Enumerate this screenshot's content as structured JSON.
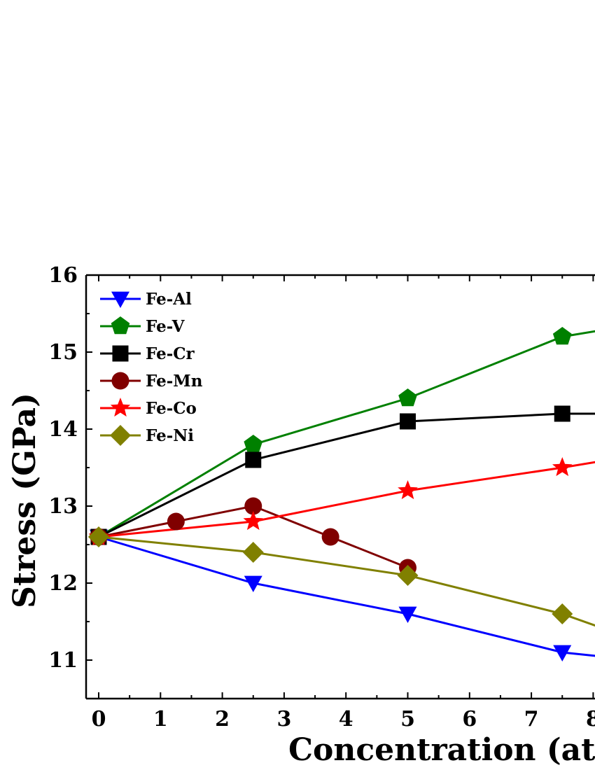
{
  "chart_data": {
    "type": "line",
    "xlabel": "Concentration (at.%)",
    "ylabel": "Stress (GPa)",
    "xlim": [
      -0.2,
      8.0
    ],
    "ylim": [
      10.5,
      16.0
    ],
    "xticks": [
      "0",
      "1",
      "2",
      "3",
      "4",
      "5",
      "6",
      "7",
      "8"
    ],
    "yticks": [
      "11",
      "12",
      "13",
      "14",
      "15",
      "16"
    ],
    "grid": false,
    "legend_position": "top-left",
    "series": [
      {
        "name": "Fe-Al",
        "color": "#0000ff",
        "marker": "triangle-down",
        "x": [
          0,
          2.5,
          5,
          7.5,
          8.1
        ],
        "y": [
          12.6,
          12.0,
          11.6,
          11.1,
          11.05
        ],
        "marked": [
          true,
          true,
          true,
          true,
          false
        ]
      },
      {
        "name": "Fe-V",
        "color": "#008000",
        "marker": "pentagon",
        "x": [
          0,
          2.5,
          5,
          7.5,
          8.1
        ],
        "y": [
          12.6,
          13.8,
          14.4,
          15.2,
          15.28
        ],
        "marked": [
          true,
          true,
          true,
          true,
          false
        ]
      },
      {
        "name": "Fe-Cr",
        "color": "#000000",
        "marker": "square",
        "x": [
          0,
          2.5,
          5,
          7.5,
          8.1
        ],
        "y": [
          12.6,
          13.6,
          14.1,
          14.2,
          14.2
        ],
        "marked": [
          true,
          true,
          true,
          true,
          false
        ]
      },
      {
        "name": "Fe-Mn",
        "color": "#800000",
        "marker": "circle",
        "x": [
          0,
          1.25,
          2.5,
          3.75,
          5
        ],
        "y": [
          12.6,
          12.8,
          13.0,
          12.6,
          12.2
        ],
        "marked": [
          true,
          true,
          true,
          true,
          true
        ]
      },
      {
        "name": "Fe-Co",
        "color": "#ff0000",
        "marker": "star",
        "x": [
          0,
          2.5,
          5,
          7.5,
          8.1
        ],
        "y": [
          12.6,
          12.8,
          13.2,
          13.5,
          13.58
        ],
        "marked": [
          true,
          true,
          true,
          true,
          false
        ]
      },
      {
        "name": "Fe-Ni",
        "color": "#808000",
        "marker": "diamond",
        "x": [
          0,
          2.5,
          5,
          7.5,
          8.1
        ],
        "y": [
          12.6,
          12.4,
          12.1,
          11.6,
          11.43
        ],
        "marked": [
          true,
          true,
          true,
          true,
          false
        ]
      }
    ]
  }
}
